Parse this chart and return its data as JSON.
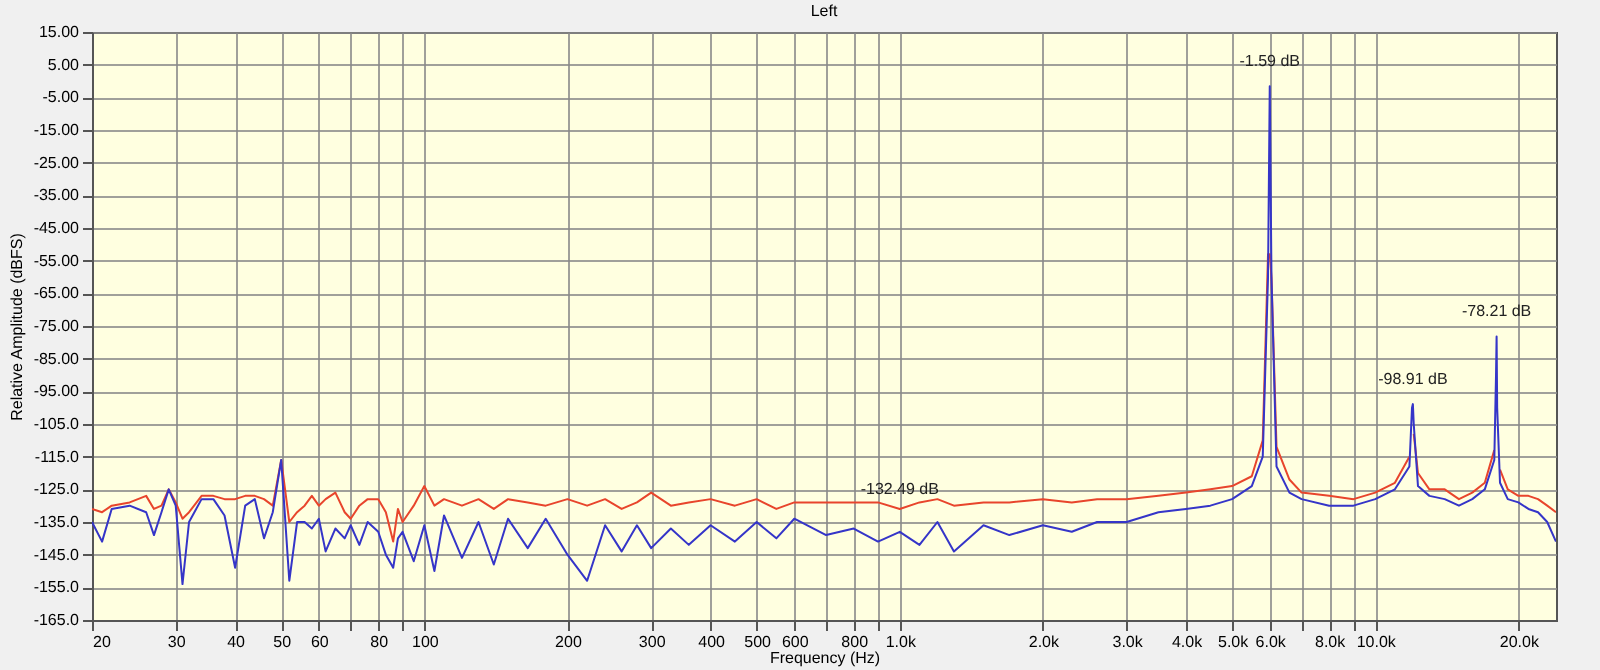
{
  "chart_data": {
    "type": "line",
    "title": "Left",
    "xlabel": "Frequency (Hz)",
    "ylabel": "Relative Amplitude (dBFS)",
    "log": "x",
    "grid": true,
    "xlim": [
      20,
      24000
    ],
    "xticks": [
      20,
      30,
      40,
      50,
      60,
      {
        "value": 70,
        "label": null
      },
      80,
      {
        "value": 90,
        "label": null
      },
      100,
      200,
      300,
      400,
      500,
      600,
      {
        "value": 700,
        "label": null
      },
      800,
      {
        "value": 900,
        "label": null
      },
      {
        "value": 1000,
        "label": "1.0k"
      },
      {
        "value": 2000,
        "label": "2.0k"
      },
      {
        "value": 3000,
        "label": "3.0k"
      },
      {
        "value": 4000,
        "label": "4.0k"
      },
      {
        "value": 5000,
        "label": "5.0k"
      },
      {
        "value": 6000,
        "label": "6.0k"
      },
      {
        "value": 7000,
        "label": null
      },
      {
        "value": 8000,
        "label": "8.0k"
      },
      {
        "value": 9000,
        "label": null
      },
      {
        "value": 10000,
        "label": "10.0k"
      },
      {
        "value": 20000,
        "label": "20.0k"
      }
    ],
    "ylim": [
      -165,
      15
    ],
    "yticks": [
      {
        "value": 15,
        "label": "15.00"
      },
      {
        "value": 5,
        "label": "5.00"
      },
      {
        "value": -5,
        "label": "-5.00"
      },
      {
        "value": -15,
        "label": "-15.00"
      },
      {
        "value": -25,
        "label": "-25.00"
      },
      {
        "value": -35,
        "label": "-35.00"
      },
      {
        "value": -45,
        "label": "-45.00"
      },
      {
        "value": -55,
        "label": "-55.00"
      },
      {
        "value": -65,
        "label": "-65.00"
      },
      {
        "value": -75,
        "label": "-75.00"
      },
      {
        "value": -85,
        "label": "-85.00"
      },
      {
        "value": -95,
        "label": "-95.00"
      },
      {
        "value": -105,
        "label": "-105.0"
      },
      {
        "value": -115,
        "label": "-115.0"
      },
      {
        "value": -125,
        "label": "-125.0"
      },
      {
        "value": -135,
        "label": "-135.0"
      },
      {
        "value": -145,
        "label": "-145.0"
      },
      {
        "value": -155,
        "label": "-155.0"
      },
      {
        "value": -165,
        "label": "-165.0"
      }
    ],
    "x": [
      20,
      21,
      22,
      24,
      26,
      27,
      28,
      29,
      30,
      31,
      32,
      34,
      36,
      38,
      40,
      42,
      44,
      46,
      48,
      50,
      52,
      54,
      56,
      58,
      60,
      62,
      65,
      68,
      70,
      73,
      76,
      80,
      83,
      86,
      88,
      90,
      95,
      100,
      105,
      110,
      120,
      130,
      140,
      150,
      165,
      180,
      200,
      220,
      240,
      260,
      280,
      300,
      330,
      360,
      400,
      450,
      500,
      550,
      600,
      700,
      800,
      900,
      1000,
      1100,
      1200,
      1300,
      1500,
      1700,
      2000,
      2300,
      2600,
      3000,
      3500,
      4000,
      4500,
      5000,
      5500,
      5800,
      5950,
      6000,
      6050,
      6200,
      6600,
      7000,
      8000,
      9000,
      10000,
      11000,
      11800,
      11950,
      12000,
      12050,
      12300,
      13000,
      14000,
      15000,
      16000,
      17000,
      17800,
      17950,
      18000,
      18050,
      18300,
      19000,
      20000,
      21000,
      22000,
      23000,
      24000
    ],
    "series": [
      {
        "color": "#e8452c",
        "values": [
          -131,
          -132,
          -130,
          -129,
          -127,
          -131,
          -130,
          -125,
          -129,
          -134,
          -132,
          -127,
          -127,
          -128,
          -128,
          -127,
          -127,
          -128,
          -130,
          -116,
          -135,
          -132,
          -130,
          -127,
          -130,
          -128,
          -126,
          -132,
          -134,
          -130,
          -128,
          -128,
          -132,
          -141,
          -131,
          -135,
          -130,
          -124,
          -130,
          -128,
          -130,
          -128,
          -131,
          -128,
          -129,
          -130,
          -128,
          -130,
          -128,
          -131,
          -129,
          -126,
          -130,
          -129,
          -128,
          -130,
          -128,
          -131,
          -129,
          -129,
          -129,
          -129,
          -131,
          -129,
          -128,
          -130,
          -129,
          -129,
          -128,
          -129,
          -128,
          -128,
          -127,
          -126,
          -125,
          -124,
          -121,
          -110,
          -53,
          -53,
          -60,
          -112,
          -122,
          -126,
          -127,
          -128,
          -126,
          -123,
          -115,
          null,
          null,
          -108,
          -120,
          -125,
          -125,
          -128,
          -126,
          -123,
          -113,
          null,
          null,
          null,
          -119,
          -125,
          -127,
          -127,
          -128,
          -130,
          -132
        ]
      },
      {
        "color": "#3535c8",
        "values": [
          -135,
          -141,
          -131,
          -130,
          -132,
          -139,
          -132,
          -125,
          -130,
          -154,
          -135,
          -128,
          -128,
          -133,
          -149,
          -130,
          -128,
          -140,
          -132,
          -116,
          -153,
          -135,
          -135,
          -137,
          -134,
          -144,
          -137,
          -140,
          -136,
          -142,
          -135,
          -138,
          -145,
          -149,
          -140,
          -138,
          -147,
          -136,
          -150,
          -133,
          -146,
          -135,
          -148,
          -134,
          -143,
          -134,
          -145,
          -153,
          -136,
          -144,
          -136,
          -143,
          -137,
          -142,
          -136,
          -141,
          -135,
          -140,
          -134,
          -139,
          -137,
          -141,
          -138,
          -142,
          -135,
          -144,
          -136,
          -139,
          -136,
          -138,
          -135,
          -135,
          -132,
          -131,
          -130,
          -128,
          -124,
          -115,
          -60,
          -1.59,
          -60,
          -118,
          -126,
          -128,
          -130,
          -130,
          -128,
          -125,
          -118,
          -100,
          -98.91,
          -105,
          -124,
          -127,
          -128,
          -130,
          -128,
          -125,
          -116,
          -90,
          -78.21,
          -100,
          -123,
          -128,
          -129,
          -131,
          -132,
          -135,
          -141
        ]
      }
    ],
    "annotations": [
      {
        "text": "-1.59 dB",
        "x": 6000,
        "y": -1.59
      },
      {
        "text": "-98.91 dB",
        "x": 12000,
        "y": -98.91
      },
      {
        "text": "-78.21 dB",
        "x": 18000,
        "y": -78.21
      },
      {
        "text": "-132.49 dB",
        "x": 1000,
        "y": -132.49
      }
    ]
  }
}
